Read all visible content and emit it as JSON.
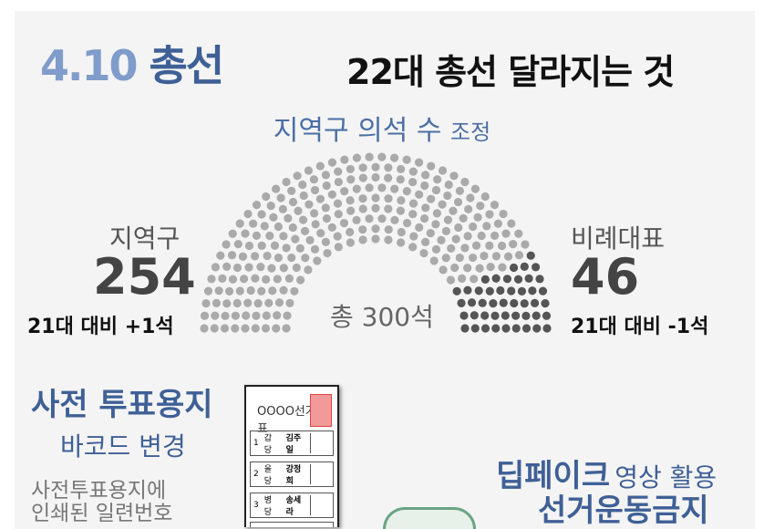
{
  "header": {
    "title_date": "4.10",
    "title_word": "총선",
    "subtitle": "22대 총선 달라지는 것"
  },
  "seats": {
    "title_main": "지역구 의석 수",
    "title_small": "조정",
    "district": {
      "label": "지역구",
      "count": "254",
      "change": "21대 대비 +1석"
    },
    "proportional": {
      "label": "비례대표",
      "count": "46",
      "change": "21대 대비 -1석"
    },
    "total": "총 300석",
    "chart_data": {
      "type": "hemicycle",
      "total": 300,
      "values": [
        254,
        46
      ],
      "colors": [
        "#aaaaaa",
        "#555555"
      ]
    }
  },
  "early_vote": {
    "title": "사전 투표용지",
    "subtitle": "바코드 변경",
    "body_lines": [
      "사전투표용지에",
      "인쇄된 일련번호"
    ],
    "ballot": {
      "header": "OOOO선거투표",
      "rows": [
        {
          "no": "1",
          "party": "갑 당",
          "name": "김주일"
        },
        {
          "no": "2",
          "party": "을 당",
          "name": "강정희"
        },
        {
          "no": "3",
          "party": "병 당",
          "name": "송세라"
        }
      ]
    }
  },
  "deepfake": {
    "title": "딥페이크",
    "title_small": "영상 활용",
    "subtitle": "선거운동금지"
  },
  "colors": {
    "accent": "#3f6096",
    "accent_light": "#7f9ccb",
    "seat_district": "#aaaaaa",
    "seat_proportional": "#555555"
  }
}
